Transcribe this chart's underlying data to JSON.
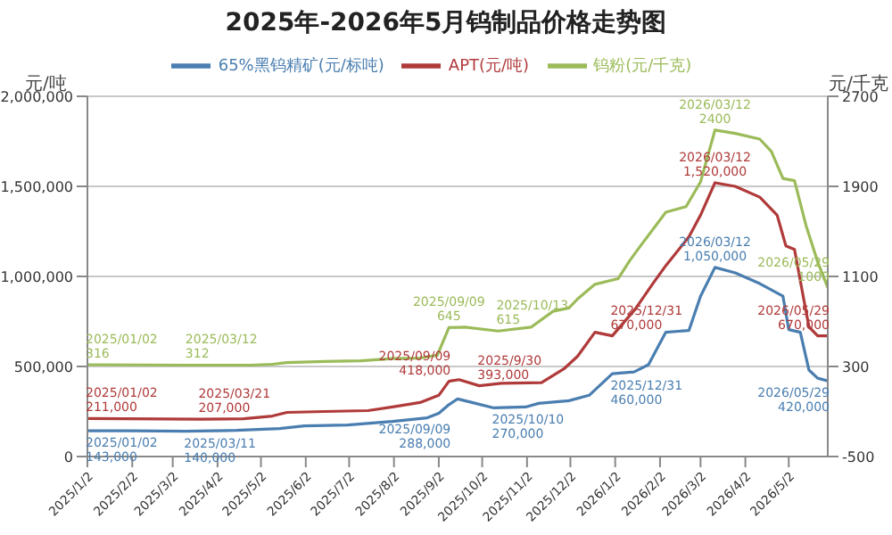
{
  "chart_data": {
    "type": "line",
    "title": "2025年-2026年5月钨制品价格走势图",
    "ylabel": "元/吨",
    "y2label": "元/千克",
    "xlim": [
      "2025-01-02",
      "2026-05-29"
    ],
    "xticks": [
      {
        "value": "2025-01-02",
        "label": "2025/1/2"
      },
      {
        "value": "2025-02-02",
        "label": "2025/2/2"
      },
      {
        "value": "2025-03-02",
        "label": "2025/3/2"
      },
      {
        "value": "2025-04-02",
        "label": "2025/4/2"
      },
      {
        "value": "2025-05-02",
        "label": "2025/5/2"
      },
      {
        "value": "2025-06-02",
        "label": "2025/6/2"
      },
      {
        "value": "2025-07-02",
        "label": "2025/7/2"
      },
      {
        "value": "2025-08-02",
        "label": "2025/8/2"
      },
      {
        "value": "2025-09-02",
        "label": "2025/9/2"
      },
      {
        "value": "2025-10-02",
        "label": "2025/10/2"
      },
      {
        "value": "2025-11-02",
        "label": "2025/11/2"
      },
      {
        "value": "2025-12-02",
        "label": "2025/12/2"
      },
      {
        "value": "2026-01-02",
        "label": "2026/1/2"
      },
      {
        "value": "2026-02-02",
        "label": "2026/2/2"
      },
      {
        "value": "2026-03-02",
        "label": "2026/3/2"
      },
      {
        "value": "2026-04-02",
        "label": "2026/4/2"
      },
      {
        "value": "2026-05-02",
        "label": "2026/5/2"
      }
    ],
    "ylim": [
      0,
      2000000
    ],
    "yticks": [
      0,
      {
        "value": 500000,
        "label": "500,000"
      },
      {
        "value": 1000000,
        "label": "1,000,000"
      },
      {
        "value": 1500000,
        "label": "1,500,000"
      },
      {
        "value": 2000000,
        "label": "2,000,000"
      }
    ],
    "y2lim": [
      -500,
      2700
    ],
    "y2ticks": [
      -500,
      300,
      1100,
      1900,
      2700
    ],
    "grid": "y",
    "legend": "top",
    "series": [
      {
        "name": "65%黑钨精矿(元/标吨)",
        "color": "#4a7eb0",
        "x": [
          "2025-01-02",
          "2025-02-01",
          "2025-03-11",
          "2025-04-15",
          "2025-05-15",
          "2025-06-01",
          "2025-07-01",
          "2025-08-01",
          "2025-08-25",
          "2025-09-02",
          "2025-09-09",
          "2025-09-15",
          "2025-09-25",
          "2025-10-10",
          "2025-11-01",
          "2025-11-10",
          "2025-12-01",
          "2025-12-15",
          "2025-12-31",
          "2026-01-15",
          "2026-01-25",
          "2026-02-06",
          "2026-02-22",
          "2026-03-02",
          "2026-03-12",
          "2026-03-26",
          "2026-04-12",
          "2026-04-28",
          "2026-05-02",
          "2026-05-10",
          "2026-05-16",
          "2026-05-22",
          "2026-05-29"
        ],
        "values": [
          143000,
          143000,
          140000,
          145000,
          155000,
          170000,
          175000,
          195000,
          215000,
          240000,
          288000,
          320000,
          300000,
          270000,
          275000,
          295000,
          310000,
          340000,
          460000,
          470000,
          510000,
          690000,
          700000,
          890000,
          1050000,
          1020000,
          960000,
          890000,
          705000,
          690000,
          480000,
          435000,
          420000
        ],
        "value_labels": [
          "2025/01/02\n143,000",
          null,
          "2025/03/11\n140,000",
          null,
          null,
          null,
          null,
          null,
          null,
          null,
          "2025/09/09\n288,000",
          null,
          null,
          "2025/10/10\n270,000",
          null,
          null,
          null,
          null,
          "2025/12/31\n460,000",
          null,
          null,
          null,
          null,
          null,
          "2026/03/12\n1,050,000",
          null,
          null,
          null,
          null,
          null,
          null,
          null,
          "2026/05/29\n420,000"
        ]
      },
      {
        "name": "APT(元/吨)",
        "color": "#b03a3a",
        "x": [
          "2025-01-02",
          "2025-03-21",
          "2025-04-20",
          "2025-05-10",
          "2025-05-20",
          "2025-06-15",
          "2025-07-15",
          "2025-08-01",
          "2025-08-20",
          "2025-09-02",
          "2025-09-09",
          "2025-09-16",
          "2025-09-30",
          "2025-10-15",
          "2025-11-12",
          "2025-11-28",
          "2025-12-07",
          "2025-12-19",
          "2025-12-31",
          "2026-01-16",
          "2026-01-28",
          "2026-02-06",
          "2026-02-22",
          "2026-03-02",
          "2026-03-12",
          "2026-03-26",
          "2026-04-12",
          "2026-04-24",
          "2026-04-30",
          "2026-05-06",
          "2026-05-12",
          "2026-05-16",
          "2026-05-22",
          "2026-05-29"
        ],
        "values": [
          211000,
          207000,
          210000,
          225000,
          245000,
          250000,
          255000,
          275000,
          300000,
          340000,
          418000,
          427000,
          393000,
          407000,
          410000,
          490000,
          557000,
          690000,
          670000,
          820000,
          960000,
          1060000,
          1220000,
          1340000,
          1520000,
          1500000,
          1440000,
          1340000,
          1170000,
          1150000,
          890000,
          720000,
          670000,
          670000
        ],
        "value_labels": [
          "2025/01/02\n211,000",
          "2025/03/21\n207,000",
          null,
          null,
          null,
          null,
          null,
          null,
          null,
          null,
          "2025/09/09\n418,000",
          null,
          "2025/9/30\n393,000",
          null,
          null,
          null,
          null,
          null,
          "2025/12/31\n670,000",
          null,
          null,
          null,
          null,
          null,
          "2026/03/12\n1,520,000",
          null,
          null,
          null,
          null,
          null,
          null,
          null,
          null,
          "2026/05/29\n670,000"
        ]
      },
      {
        "name": "钨粉(元/千克)",
        "color": "#9bbb59",
        "axis": "y2",
        "x": [
          "2025-01-02",
          "2025-03-12",
          "2025-04-25",
          "2025-05-10",
          "2025-05-20",
          "2025-06-15",
          "2025-07-10",
          "2025-08-01",
          "2025-08-20",
          "2025-09-01",
          "2025-09-09",
          "2025-09-20",
          "2025-10-13",
          "2025-11-05",
          "2025-11-20",
          "2025-12-01",
          "2025-12-07",
          "2025-12-19",
          "2026-01-04",
          "2026-01-12",
          "2026-01-20",
          "2026-02-06",
          "2026-02-20",
          "2026-03-02",
          "2026-03-12",
          "2026-03-26",
          "2026-04-12",
          "2026-04-20",
          "2026-04-28",
          "2026-05-06",
          "2026-05-14",
          "2026-05-22",
          "2026-05-29"
        ],
        "values": [
          316,
          312,
          312,
          320,
          335,
          345,
          350,
          370,
          375,
          400,
          645,
          650,
          615,
          650,
          790,
          820,
          900,
          1030,
          1080,
          1240,
          1380,
          1670,
          1720,
          1940,
          2400,
          2370,
          2320,
          2210,
          1970,
          1950,
          1550,
          1230,
          1000
        ],
        "value_labels": [
          "2025/01/02\n316",
          "2025/03/12\n312",
          null,
          null,
          null,
          null,
          null,
          null,
          null,
          null,
          "2025/09/09\n645",
          null,
          "2025/10/13\n615",
          null,
          null,
          null,
          null,
          null,
          null,
          null,
          null,
          null,
          null,
          null,
          "2026/03/12\n2400",
          null,
          null,
          null,
          null,
          null,
          null,
          null,
          "2026/05/29\n1000"
        ]
      }
    ]
  }
}
